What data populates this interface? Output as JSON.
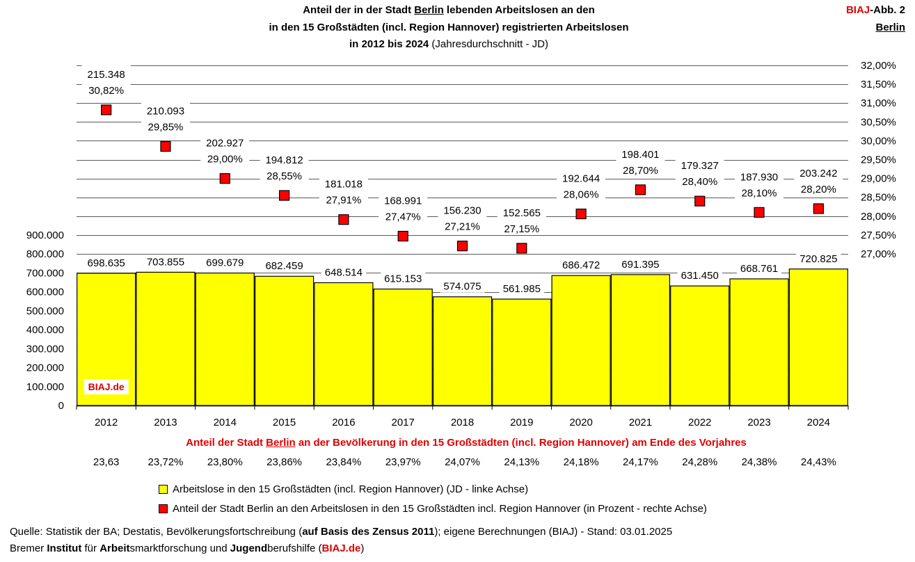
{
  "title": {
    "line1_a": "Anteil der in der Stadt ",
    "line1_city": "Berlin",
    "line1_b": " lebenden Arbeitslosen an den",
    "line2": "in den 15 Großstädten (incl. Region Hannover) registrierten Arbeitslosen",
    "line3_bold": "in 2012 bis 2024",
    "line3_norm": " (Jahresdurchschnitt - JD)"
  },
  "badge": {
    "biaj": "BIAJ",
    "abb": "-Abb. 2",
    "city": "Berlin"
  },
  "watermark": "BIAJ.de",
  "shares_caption": {
    "a": "Anteil der Stadt ",
    "city": "Berlin",
    "b": " an der Bevölkerung in den 15 Großstädten (incl. Region Hannover) am Ende des Vorjahres"
  },
  "legend": {
    "bars": "Arbeitslose in den 15 Großstädten (incl. Region Hannover) (JD - linke Achse)",
    "markers": "Anteil der Stadt Berlin an den Arbeitslosen in den 15 Großstädten incl. Region Hannover (in Prozent - rechte Achse)"
  },
  "source": {
    "l1_a": "Quelle: Statistik der BA; Destatis, Bevölkerungsfortschreibung (",
    "l1_bold": "auf Basis des Zensus 2011",
    "l1_b": "); eigene Berechnungen (BIAJ) - Stand: 03.01.2025",
    "l2_a": "Bremer ",
    "l2_b1": "Institut",
    "l2_c": " für ",
    "l2_b2": "Arbeit",
    "l2_d": "smarktforschung und ",
    "l2_b3": "Jugend",
    "l2_e": "berufshilfe (",
    "l2_link": "BIAJ.de",
    "l2_f": ")"
  },
  "colors": {
    "bar": "#ffff00",
    "marker": "#ff0000",
    "accent": "#e00000",
    "grid": "#595959"
  },
  "chart_data": {
    "type": "bar",
    "categories": [
      "2012",
      "2013",
      "2014",
      "2015",
      "2016",
      "2017",
      "2018",
      "2019",
      "2020",
      "2021",
      "2022",
      "2023",
      "2024"
    ],
    "bars": {
      "axis": "left",
      "values": [
        698635,
        703855,
        699679,
        682459,
        648514,
        615153,
        574075,
        561985,
        686472,
        691395,
        631450,
        668761,
        720825
      ],
      "labels": [
        "698.635",
        "703.855",
        "699.679",
        "682.459",
        "648.514",
        "615.153",
        "574.075",
        "561.985",
        "686.472",
        "691.395",
        "631.450",
        "668.761",
        "720.825"
      ]
    },
    "markers": {
      "axis": "right",
      "values": [
        30.82,
        29.85,
        29.0,
        28.55,
        27.91,
        27.47,
        27.21,
        27.15,
        28.06,
        28.7,
        28.4,
        28.1,
        28.2
      ],
      "labels": [
        "30,82%",
        "29,85%",
        "29,00%",
        "28,55%",
        "27,91%",
        "27,47%",
        "27,21%",
        "27,15%",
        "28,06%",
        "28,70%",
        "28,40%",
        "28,10%",
        "28,20%"
      ],
      "count_labels": [
        "215.348",
        "210.093",
        "202.927",
        "194.812",
        "181.018",
        "168.991",
        "156.230",
        "152.565",
        "192.644",
        "198.401",
        "179.327",
        "187.930",
        "203.242"
      ]
    },
    "left_axis": {
      "ylim": [
        0,
        900000
      ],
      "ticks": [
        0,
        100000,
        200000,
        300000,
        400000,
        500000,
        600000,
        700000,
        800000,
        900000
      ],
      "tick_labels": [
        "0",
        "100.000",
        "200.000",
        "300.000",
        "400.000",
        "500.000",
        "600.000",
        "700.000",
        "800.000",
        "900.000"
      ]
    },
    "right_axis": {
      "ylim": [
        27.0,
        32.0
      ],
      "ticks": [
        27.0,
        27.5,
        28.0,
        28.5,
        29.0,
        29.5,
        30.0,
        30.5,
        31.0,
        31.5,
        32.0
      ],
      "tick_labels": [
        "27,00%",
        "27,50%",
        "28,00%",
        "28,50%",
        "29,00%",
        "29,50%",
        "30,00%",
        "30,50%",
        "31,00%",
        "31,50%",
        "32,00%"
      ]
    },
    "population_share": [
      "23,63",
      "23,72%",
      "23,80%",
      "23,86%",
      "23,84%",
      "23,97%",
      "24,07%",
      "24,13%",
      "24,18%",
      "24,17%",
      "24,28%",
      "24,38%",
      "24,43%"
    ],
    "grid": true
  }
}
